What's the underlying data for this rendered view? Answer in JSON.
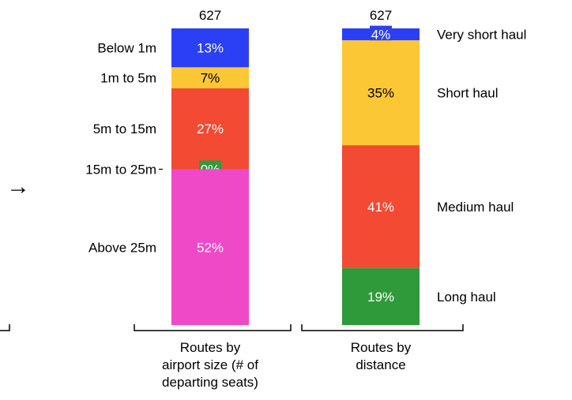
{
  "chart_data": {
    "type": "bar",
    "stacked": true,
    "normalized_percent": true,
    "bars": [
      {
        "total": "627",
        "axis_label": [
          "Routes by",
          "airport size (# of",
          "departing seats)"
        ],
        "segments": [
          {
            "name": "Below 1m",
            "value": 13,
            "label": "13%",
            "color": "#2b3ff5"
          },
          {
            "name": "1m to 5m",
            "value": 7,
            "label": "7%",
            "color": "#fbc735"
          },
          {
            "name": "5m to 15m",
            "value": 27,
            "label": "27%",
            "color": "#f24a33"
          },
          {
            "name": "15m to 25m",
            "value": 0,
            "label": "0%",
            "color": "#2f9a3a"
          },
          {
            "name": "Above 25m",
            "value": 52,
            "label": "52%",
            "color": "#ef49c8"
          }
        ]
      },
      {
        "total": "627",
        "axis_label": [
          "Routes by",
          "distance"
        ],
        "segments": [
          {
            "name": "Very short haul",
            "value": 4,
            "label": "4%",
            "color": "#2b3ff5"
          },
          {
            "name": "Short haul",
            "value": 35,
            "label": "35%",
            "color": "#fbc735"
          },
          {
            "name": "Medium haul",
            "value": 41,
            "label": "41%",
            "color": "#f24a33"
          },
          {
            "name": "Long haul",
            "value": 19,
            "label": "19%",
            "color": "#2f9a3a"
          }
        ]
      }
    ],
    "arrow_glyph": "→"
  }
}
